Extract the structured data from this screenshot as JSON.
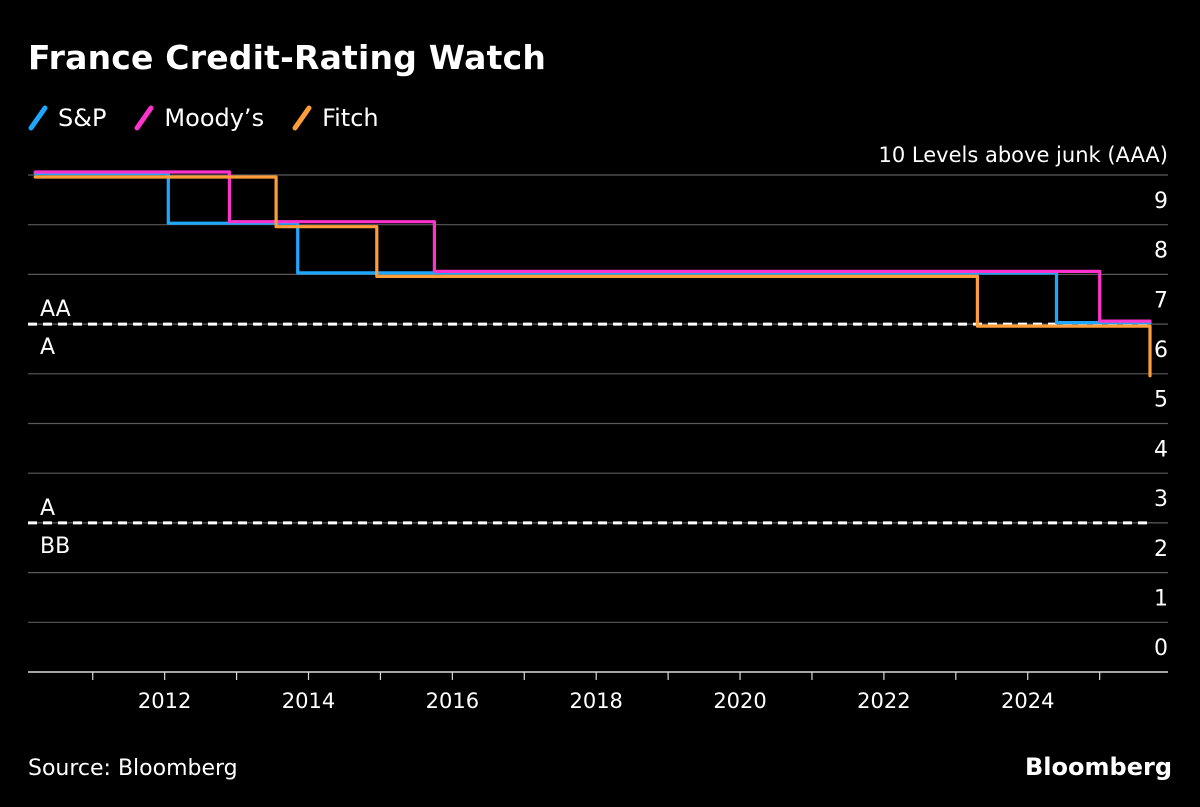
{
  "title": "France Credit-Rating Watch",
  "source": "Source: Bloomberg",
  "brand": "Bloomberg",
  "legend": [
    {
      "name": "S&P",
      "color": "#1ea7ff"
    },
    {
      "name": "Moody’s",
      "color": "#ff33cc"
    },
    {
      "name": "Fitch",
      "color": "#ff9d3a"
    }
  ],
  "chart_data": {
    "type": "line",
    "title": "France Credit-Rating Watch",
    "ylabel": "10 Levels above junk (AAA)",
    "ylim": [
      0,
      10
    ],
    "xlim": [
      2010.1,
      2025.95
    ],
    "x_ticks": [
      2012,
      2014,
      2016,
      2018,
      2020,
      2022,
      2024
    ],
    "y_ticks": [
      0,
      1,
      2,
      3,
      4,
      5,
      6,
      7,
      8,
      9
    ],
    "grid": true,
    "legend_position": "top-left",
    "reference_lines": [
      {
        "y": 7,
        "label_above": "AA",
        "label_below": "A"
      },
      {
        "y": 3,
        "label_above": "A",
        "label_below": "BB"
      }
    ],
    "series": [
      {
        "name": "S&P",
        "color": "#1ea7ff",
        "step": true,
        "points": [
          [
            2010.2,
            10
          ],
          [
            2012.05,
            10
          ],
          [
            2012.05,
            9
          ],
          [
            2013.85,
            9
          ],
          [
            2013.85,
            8
          ],
          [
            2024.4,
            8
          ],
          [
            2024.4,
            7
          ],
          [
            2025.7,
            7
          ]
        ]
      },
      {
        "name": "Moody’s",
        "color": "#ff33cc",
        "step": true,
        "points": [
          [
            2010.2,
            10
          ],
          [
            2012.9,
            10
          ],
          [
            2012.9,
            9
          ],
          [
            2015.75,
            9
          ],
          [
            2015.75,
            8
          ],
          [
            2025.0,
            8
          ],
          [
            2025.0,
            7
          ],
          [
            2025.7,
            7
          ]
        ]
      },
      {
        "name": "Fitch",
        "color": "#ff9d3a",
        "step": true,
        "points": [
          [
            2010.2,
            10
          ],
          [
            2013.55,
            10
          ],
          [
            2013.55,
            9
          ],
          [
            2014.95,
            9
          ],
          [
            2014.95,
            8
          ],
          [
            2023.3,
            8
          ],
          [
            2023.3,
            7
          ],
          [
            2025.7,
            7
          ],
          [
            2025.7,
            6
          ]
        ]
      }
    ]
  }
}
